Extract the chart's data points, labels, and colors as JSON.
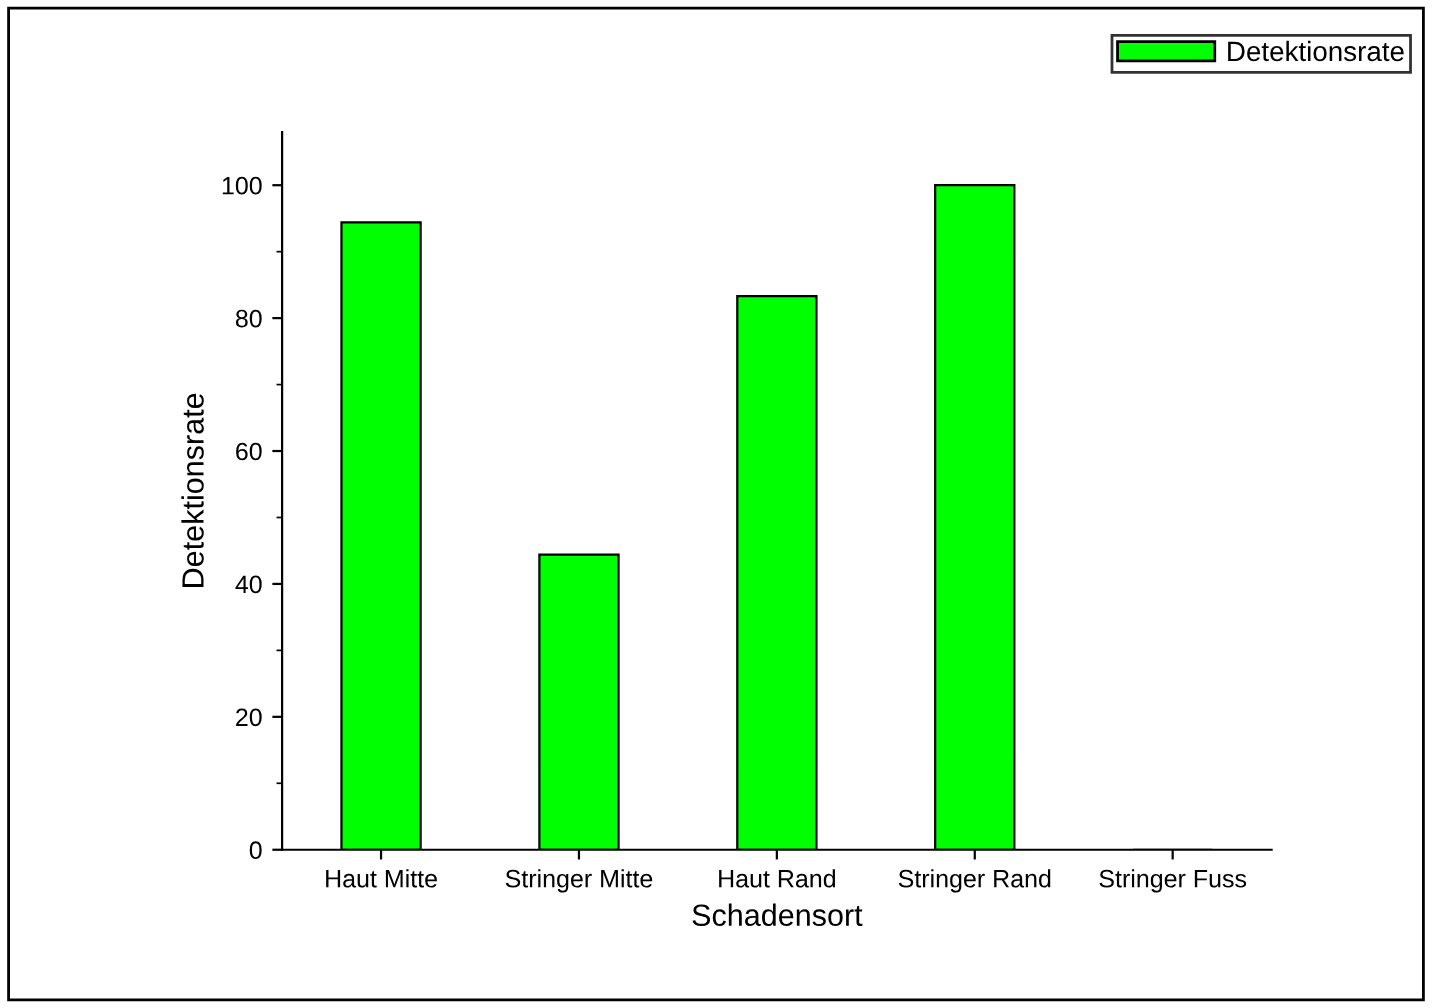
{
  "chart_data": {
    "type": "bar",
    "xlabel": "Schadensort",
    "ylabel": "Detektionsrate",
    "categories": [
      "Haut Mitte",
      "Stringer Mitte",
      "Haut Rand",
      "Stringer Rand",
      "Stringer Fuss"
    ],
    "series": [
      {
        "name": "Detektionsrate",
        "color": "#00ff00",
        "values": [
          94.4,
          44.4,
          83.3,
          100,
          0
        ]
      }
    ],
    "ylim": [
      0,
      108
    ],
    "yticks": [
      0,
      20,
      40,
      60,
      80,
      100
    ],
    "grid": false,
    "legend": "top right"
  }
}
